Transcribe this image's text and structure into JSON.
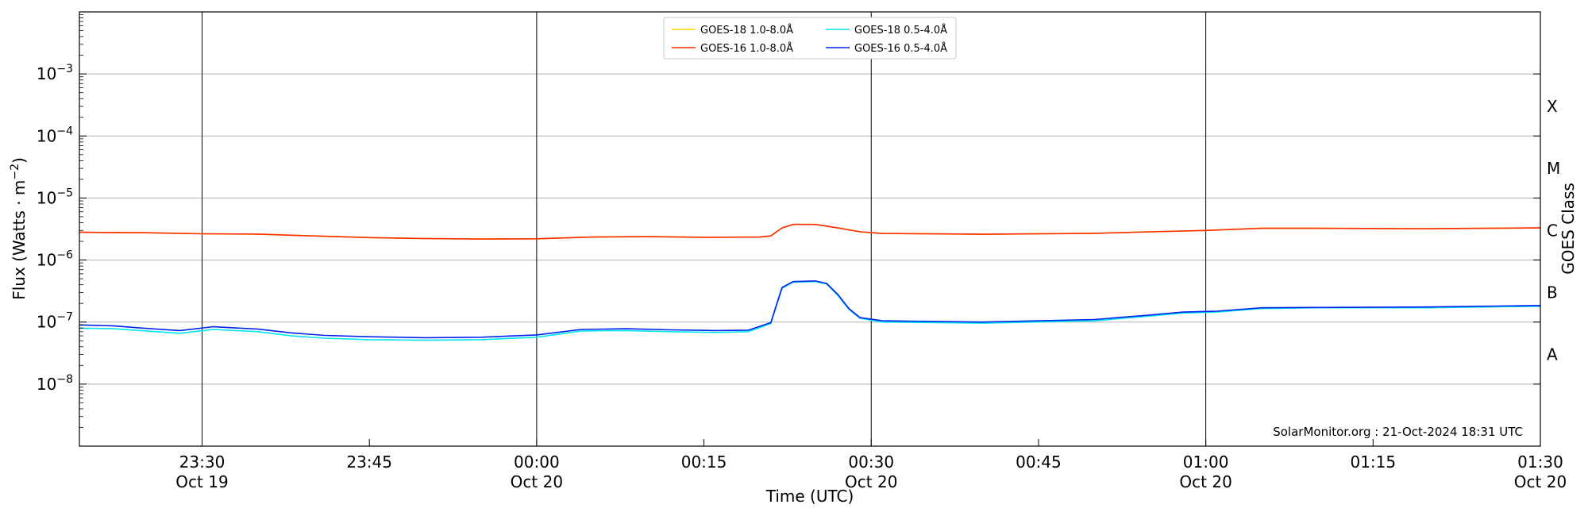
{
  "chart_data": {
    "type": "line",
    "xlabel": "Time (UTC)",
    "ylabel": "Flux (Watts · m−2)",
    "ylabel_main": "Flux (Watts · m",
    "ylabel_sup": "−2",
    "ylabel_tail": ")",
    "right_axis_label": "GOES Class",
    "y_scale": "log",
    "ylim": [
      1e-09,
      0.01
    ],
    "xlim": [
      "2024-10-19 23:19",
      "2024-10-20 01:30"
    ],
    "grid": "horizontal at decades, vertical at 23:30, 00:00, 00:30, 01:00",
    "legend_position": "top-center",
    "credit": "SolarMonitor.org : 21-Oct-2024 18:31 UTC",
    "y_ticks": [
      {
        "value": 1e-08,
        "base": "10",
        "exp": "−8"
      },
      {
        "value": 1e-07,
        "base": "10",
        "exp": "−7"
      },
      {
        "value": 1e-06,
        "base": "10",
        "exp": "−6"
      },
      {
        "value": 1e-05,
        "base": "10",
        "exp": "−5"
      },
      {
        "value": 0.0001,
        "base": "10",
        "exp": "−4"
      },
      {
        "value": 0.001,
        "base": "10",
        "exp": "−3"
      }
    ],
    "class_labels": [
      {
        "label": "A",
        "value": 3e-08
      },
      {
        "label": "B",
        "value": 3e-07
      },
      {
        "label": "C",
        "value": 3e-06
      },
      {
        "label": "M",
        "value": 3e-05
      },
      {
        "label": "X",
        "value": 0.0003
      }
    ],
    "x_ticks": [
      {
        "time": "2024-10-19 23:30",
        "line1": "23:30",
        "line2": "Oct 19",
        "major": true
      },
      {
        "time": "2024-10-19 23:45",
        "line1": "23:45",
        "line2": "",
        "major": false
      },
      {
        "time": "2024-10-20 00:00",
        "line1": "00:00",
        "line2": "Oct 20",
        "major": true
      },
      {
        "time": "2024-10-20 00:15",
        "line1": "00:15",
        "line2": "",
        "major": false
      },
      {
        "time": "2024-10-20 00:30",
        "line1": "00:30",
        "line2": "Oct 20",
        "major": true
      },
      {
        "time": "2024-10-20 00:45",
        "line1": "00:45",
        "line2": "",
        "major": false
      },
      {
        "time": "2024-10-20 01:00",
        "line1": "01:00",
        "line2": "Oct 20",
        "major": true
      },
      {
        "time": "2024-10-20 01:15",
        "line1": "01:15",
        "line2": "",
        "major": false
      },
      {
        "time": "2024-10-20 01:30",
        "line1": "01:30",
        "line2": "Oct 20",
        "major": true
      }
    ],
    "series": [
      {
        "name": "GOES-18 1.0-8.0Å",
        "color": "#FFD700",
        "points": [
          [
            "2024-10-19 23:19",
            2.8e-06
          ],
          [
            "2024-10-19 23:25",
            2.75e-06
          ],
          [
            "2024-10-19 23:30",
            2.65e-06
          ],
          [
            "2024-10-19 23:35",
            2.62e-06
          ],
          [
            "2024-10-19 23:40",
            2.45e-06
          ],
          [
            "2024-10-19 23:45",
            2.3e-06
          ],
          [
            "2024-10-19 23:50",
            2.22e-06
          ],
          [
            "2024-10-19 23:55",
            2.18e-06
          ],
          [
            "2024-10-20 00:00",
            2.2e-06
          ],
          [
            "2024-10-20 00:05",
            2.35e-06
          ],
          [
            "2024-10-20 00:10",
            2.38e-06
          ],
          [
            "2024-10-20 00:15",
            2.33e-06
          ],
          [
            "2024-10-20 00:20",
            2.35e-06
          ],
          [
            "2024-10-20 00:21",
            2.45e-06
          ],
          [
            "2024-10-20 00:22",
            3.3e-06
          ],
          [
            "2024-10-20 00:23",
            3.75e-06
          ],
          [
            "2024-10-20 00:25",
            3.75e-06
          ],
          [
            "2024-10-20 00:27",
            3.3e-06
          ],
          [
            "2024-10-20 00:29",
            2.85e-06
          ],
          [
            "2024-10-20 00:31",
            2.68e-06
          ],
          [
            "2024-10-20 00:40",
            2.6e-06
          ],
          [
            "2024-10-20 00:50",
            2.7e-06
          ],
          [
            "2024-10-20 00:55",
            2.85e-06
          ],
          [
            "2024-10-20 01:00",
            3e-06
          ],
          [
            "2024-10-20 01:05",
            3.25e-06
          ],
          [
            "2024-10-20 01:10",
            3.25e-06
          ],
          [
            "2024-10-20 01:20",
            3.2e-06
          ],
          [
            "2024-10-20 01:30",
            3.3e-06
          ]
        ]
      },
      {
        "name": "GOES-16 1.0-8.0Å",
        "color": "#FF2A00",
        "points": [
          [
            "2024-10-19 23:19",
            2.8e-06
          ],
          [
            "2024-10-19 23:25",
            2.75e-06
          ],
          [
            "2024-10-19 23:30",
            2.65e-06
          ],
          [
            "2024-10-19 23:35",
            2.62e-06
          ],
          [
            "2024-10-19 23:40",
            2.45e-06
          ],
          [
            "2024-10-19 23:45",
            2.3e-06
          ],
          [
            "2024-10-19 23:50",
            2.22e-06
          ],
          [
            "2024-10-19 23:55",
            2.18e-06
          ],
          [
            "2024-10-20 00:00",
            2.2e-06
          ],
          [
            "2024-10-20 00:05",
            2.35e-06
          ],
          [
            "2024-10-20 00:10",
            2.38e-06
          ],
          [
            "2024-10-20 00:15",
            2.33e-06
          ],
          [
            "2024-10-20 00:20",
            2.35e-06
          ],
          [
            "2024-10-20 00:21",
            2.45e-06
          ],
          [
            "2024-10-20 00:22",
            3.3e-06
          ],
          [
            "2024-10-20 00:23",
            3.75e-06
          ],
          [
            "2024-10-20 00:25",
            3.75e-06
          ],
          [
            "2024-10-20 00:27",
            3.3e-06
          ],
          [
            "2024-10-20 00:29",
            2.85e-06
          ],
          [
            "2024-10-20 00:31",
            2.68e-06
          ],
          [
            "2024-10-20 00:40",
            2.6e-06
          ],
          [
            "2024-10-20 00:50",
            2.7e-06
          ],
          [
            "2024-10-20 00:55",
            2.85e-06
          ],
          [
            "2024-10-20 01:00",
            3e-06
          ],
          [
            "2024-10-20 01:05",
            3.25e-06
          ],
          [
            "2024-10-20 01:10",
            3.25e-06
          ],
          [
            "2024-10-20 01:20",
            3.2e-06
          ],
          [
            "2024-10-20 01:30",
            3.3e-06
          ]
        ]
      },
      {
        "name": "GOES-18 0.5-4.0Å",
        "color": "#00E5EE",
        "points": [
          [
            "2024-10-19 23:19",
            8e-08
          ],
          [
            "2024-10-19 23:22",
            7.8e-08
          ],
          [
            "2024-10-19 23:25",
            7.2e-08
          ],
          [
            "2024-10-19 23:28",
            6.6e-08
          ],
          [
            "2024-10-19 23:31",
            7.6e-08
          ],
          [
            "2024-10-19 23:35",
            7e-08
          ],
          [
            "2024-10-19 23:38",
            6e-08
          ],
          [
            "2024-10-19 23:41",
            5.5e-08
          ],
          [
            "2024-10-19 23:45",
            5.2e-08
          ],
          [
            "2024-10-19 23:50",
            5.1e-08
          ],
          [
            "2024-10-19 23:55",
            5.2e-08
          ],
          [
            "2024-10-20 00:00",
            5.7e-08
          ],
          [
            "2024-10-20 00:04",
            7.2e-08
          ],
          [
            "2024-10-20 00:08",
            7.3e-08
          ],
          [
            "2024-10-20 00:12",
            7e-08
          ],
          [
            "2024-10-20 00:16",
            6.8e-08
          ],
          [
            "2024-10-20 00:19",
            7e-08
          ],
          [
            "2024-10-20 00:21",
            9.5e-08
          ],
          [
            "2024-10-20 00:22",
            3.5e-07
          ],
          [
            "2024-10-20 00:23",
            4.4e-07
          ],
          [
            "2024-10-20 00:25",
            4.5e-07
          ],
          [
            "2024-10-20 00:26",
            4.1e-07
          ],
          [
            "2024-10-20 00:27",
            2.7e-07
          ],
          [
            "2024-10-20 00:28",
            1.6e-07
          ],
          [
            "2024-10-20 00:29",
            1.15e-07
          ],
          [
            "2024-10-20 00:31",
            1e-07
          ],
          [
            "2024-10-20 00:40",
            9.6e-08
          ],
          [
            "2024-10-20 00:50",
            1.05e-07
          ],
          [
            "2024-10-20 00:55",
            1.25e-07
          ],
          [
            "2024-10-20 00:58",
            1.4e-07
          ],
          [
            "2024-10-20 01:01",
            1.45e-07
          ],
          [
            "2024-10-20 01:05",
            1.65e-07
          ],
          [
            "2024-10-20 01:10",
            1.7e-07
          ],
          [
            "2024-10-20 01:20",
            1.7e-07
          ],
          [
            "2024-10-20 01:30",
            1.8e-07
          ]
        ]
      },
      {
        "name": "GOES-16 0.5-4.0Å",
        "color": "#0022EE",
        "points": [
          [
            "2024-10-19 23:19",
            9e-08
          ],
          [
            "2024-10-19 23:22",
            8.7e-08
          ],
          [
            "2024-10-19 23:25",
            7.9e-08
          ],
          [
            "2024-10-19 23:28",
            7.3e-08
          ],
          [
            "2024-10-19 23:31",
            8.4e-08
          ],
          [
            "2024-10-19 23:35",
            7.7e-08
          ],
          [
            "2024-10-19 23:38",
            6.7e-08
          ],
          [
            "2024-10-19 23:41",
            6.1e-08
          ],
          [
            "2024-10-19 23:45",
            5.8e-08
          ],
          [
            "2024-10-19 23:50",
            5.6e-08
          ],
          [
            "2024-10-19 23:55",
            5.7e-08
          ],
          [
            "2024-10-20 00:00",
            6.2e-08
          ],
          [
            "2024-10-20 00:04",
            7.6e-08
          ],
          [
            "2024-10-20 00:08",
            7.8e-08
          ],
          [
            "2024-10-20 00:12",
            7.5e-08
          ],
          [
            "2024-10-20 00:16",
            7.3e-08
          ],
          [
            "2024-10-20 00:19",
            7.4e-08
          ],
          [
            "2024-10-20 00:21",
            9.8e-08
          ],
          [
            "2024-10-20 00:22",
            3.6e-07
          ],
          [
            "2024-10-20 00:23",
            4.5e-07
          ],
          [
            "2024-10-20 00:25",
            4.6e-07
          ],
          [
            "2024-10-20 00:26",
            4.2e-07
          ],
          [
            "2024-10-20 00:27",
            2.8e-07
          ],
          [
            "2024-10-20 00:28",
            1.65e-07
          ],
          [
            "2024-10-20 00:29",
            1.18e-07
          ],
          [
            "2024-10-20 00:31",
            1.05e-07
          ],
          [
            "2024-10-20 00:40",
            1e-07
          ],
          [
            "2024-10-20 00:50",
            1.1e-07
          ],
          [
            "2024-10-20 00:55",
            1.3e-07
          ],
          [
            "2024-10-20 00:58",
            1.45e-07
          ],
          [
            "2024-10-20 01:01",
            1.5e-07
          ],
          [
            "2024-10-20 01:05",
            1.7e-07
          ],
          [
            "2024-10-20 01:10",
            1.72e-07
          ],
          [
            "2024-10-20 01:20",
            1.75e-07
          ],
          [
            "2024-10-20 01:30",
            1.85e-07
          ]
        ]
      }
    ]
  }
}
